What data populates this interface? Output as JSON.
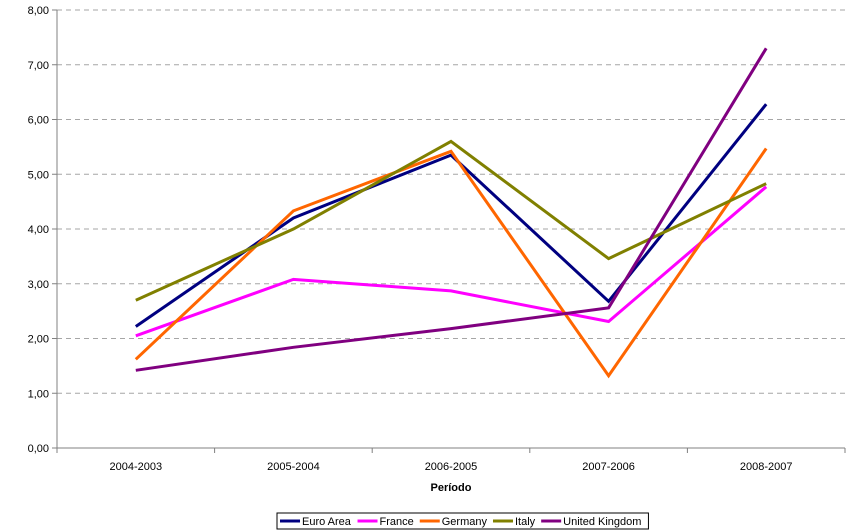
{
  "chart_data": {
    "type": "line",
    "title": "",
    "xlabel": "Período",
    "ylabel": "",
    "categories": [
      "2004-2003",
      "2005-2004",
      "2006-2005",
      "2007-2006",
      "2008-2007"
    ],
    "ylim": [
      0,
      8
    ],
    "yticks": [
      "0,00",
      "1,00",
      "2,00",
      "3,00",
      "4,00",
      "5,00",
      "6,00",
      "7,00",
      "8,00"
    ],
    "grid": "horizontal dashed",
    "legend_position": "bottom",
    "series": [
      {
        "name": "Euro Area",
        "color": "#000080",
        "values": [
          2.22,
          4.2,
          5.35,
          2.68,
          6.28
        ]
      },
      {
        "name": "France",
        "color": "#ff00ff",
        "values": [
          2.05,
          3.08,
          2.87,
          2.31,
          4.77
        ]
      },
      {
        "name": "Germany",
        "color": "#ff6600",
        "values": [
          1.62,
          4.33,
          5.42,
          1.32,
          5.47
        ]
      },
      {
        "name": "Italy",
        "color": "#808000",
        "values": [
          2.7,
          4.0,
          5.6,
          3.46,
          4.83
        ]
      },
      {
        "name": "United Kingdom",
        "color": "#800080",
        "values": [
          1.42,
          1.84,
          2.18,
          2.56,
          7.3
        ]
      }
    ]
  }
}
